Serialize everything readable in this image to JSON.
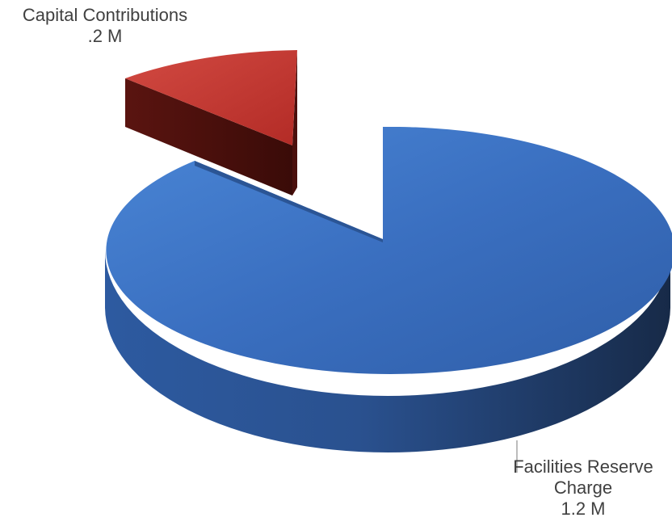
{
  "chart_data": {
    "type": "pie",
    "style": "3d-exploded",
    "slices": [
      {
        "name": "Capital Contributions",
        "value_label": ".2 M",
        "value": 0.2,
        "color": "#c0392f",
        "exploded": true
      },
      {
        "name": "Facilities Reserve Charge",
        "name_lines": [
          "Facilities Reserve",
          "Charge"
        ],
        "value_label": "1.2 M",
        "value": 1.2,
        "color": "#3a72c4",
        "exploded": false
      }
    ]
  }
}
